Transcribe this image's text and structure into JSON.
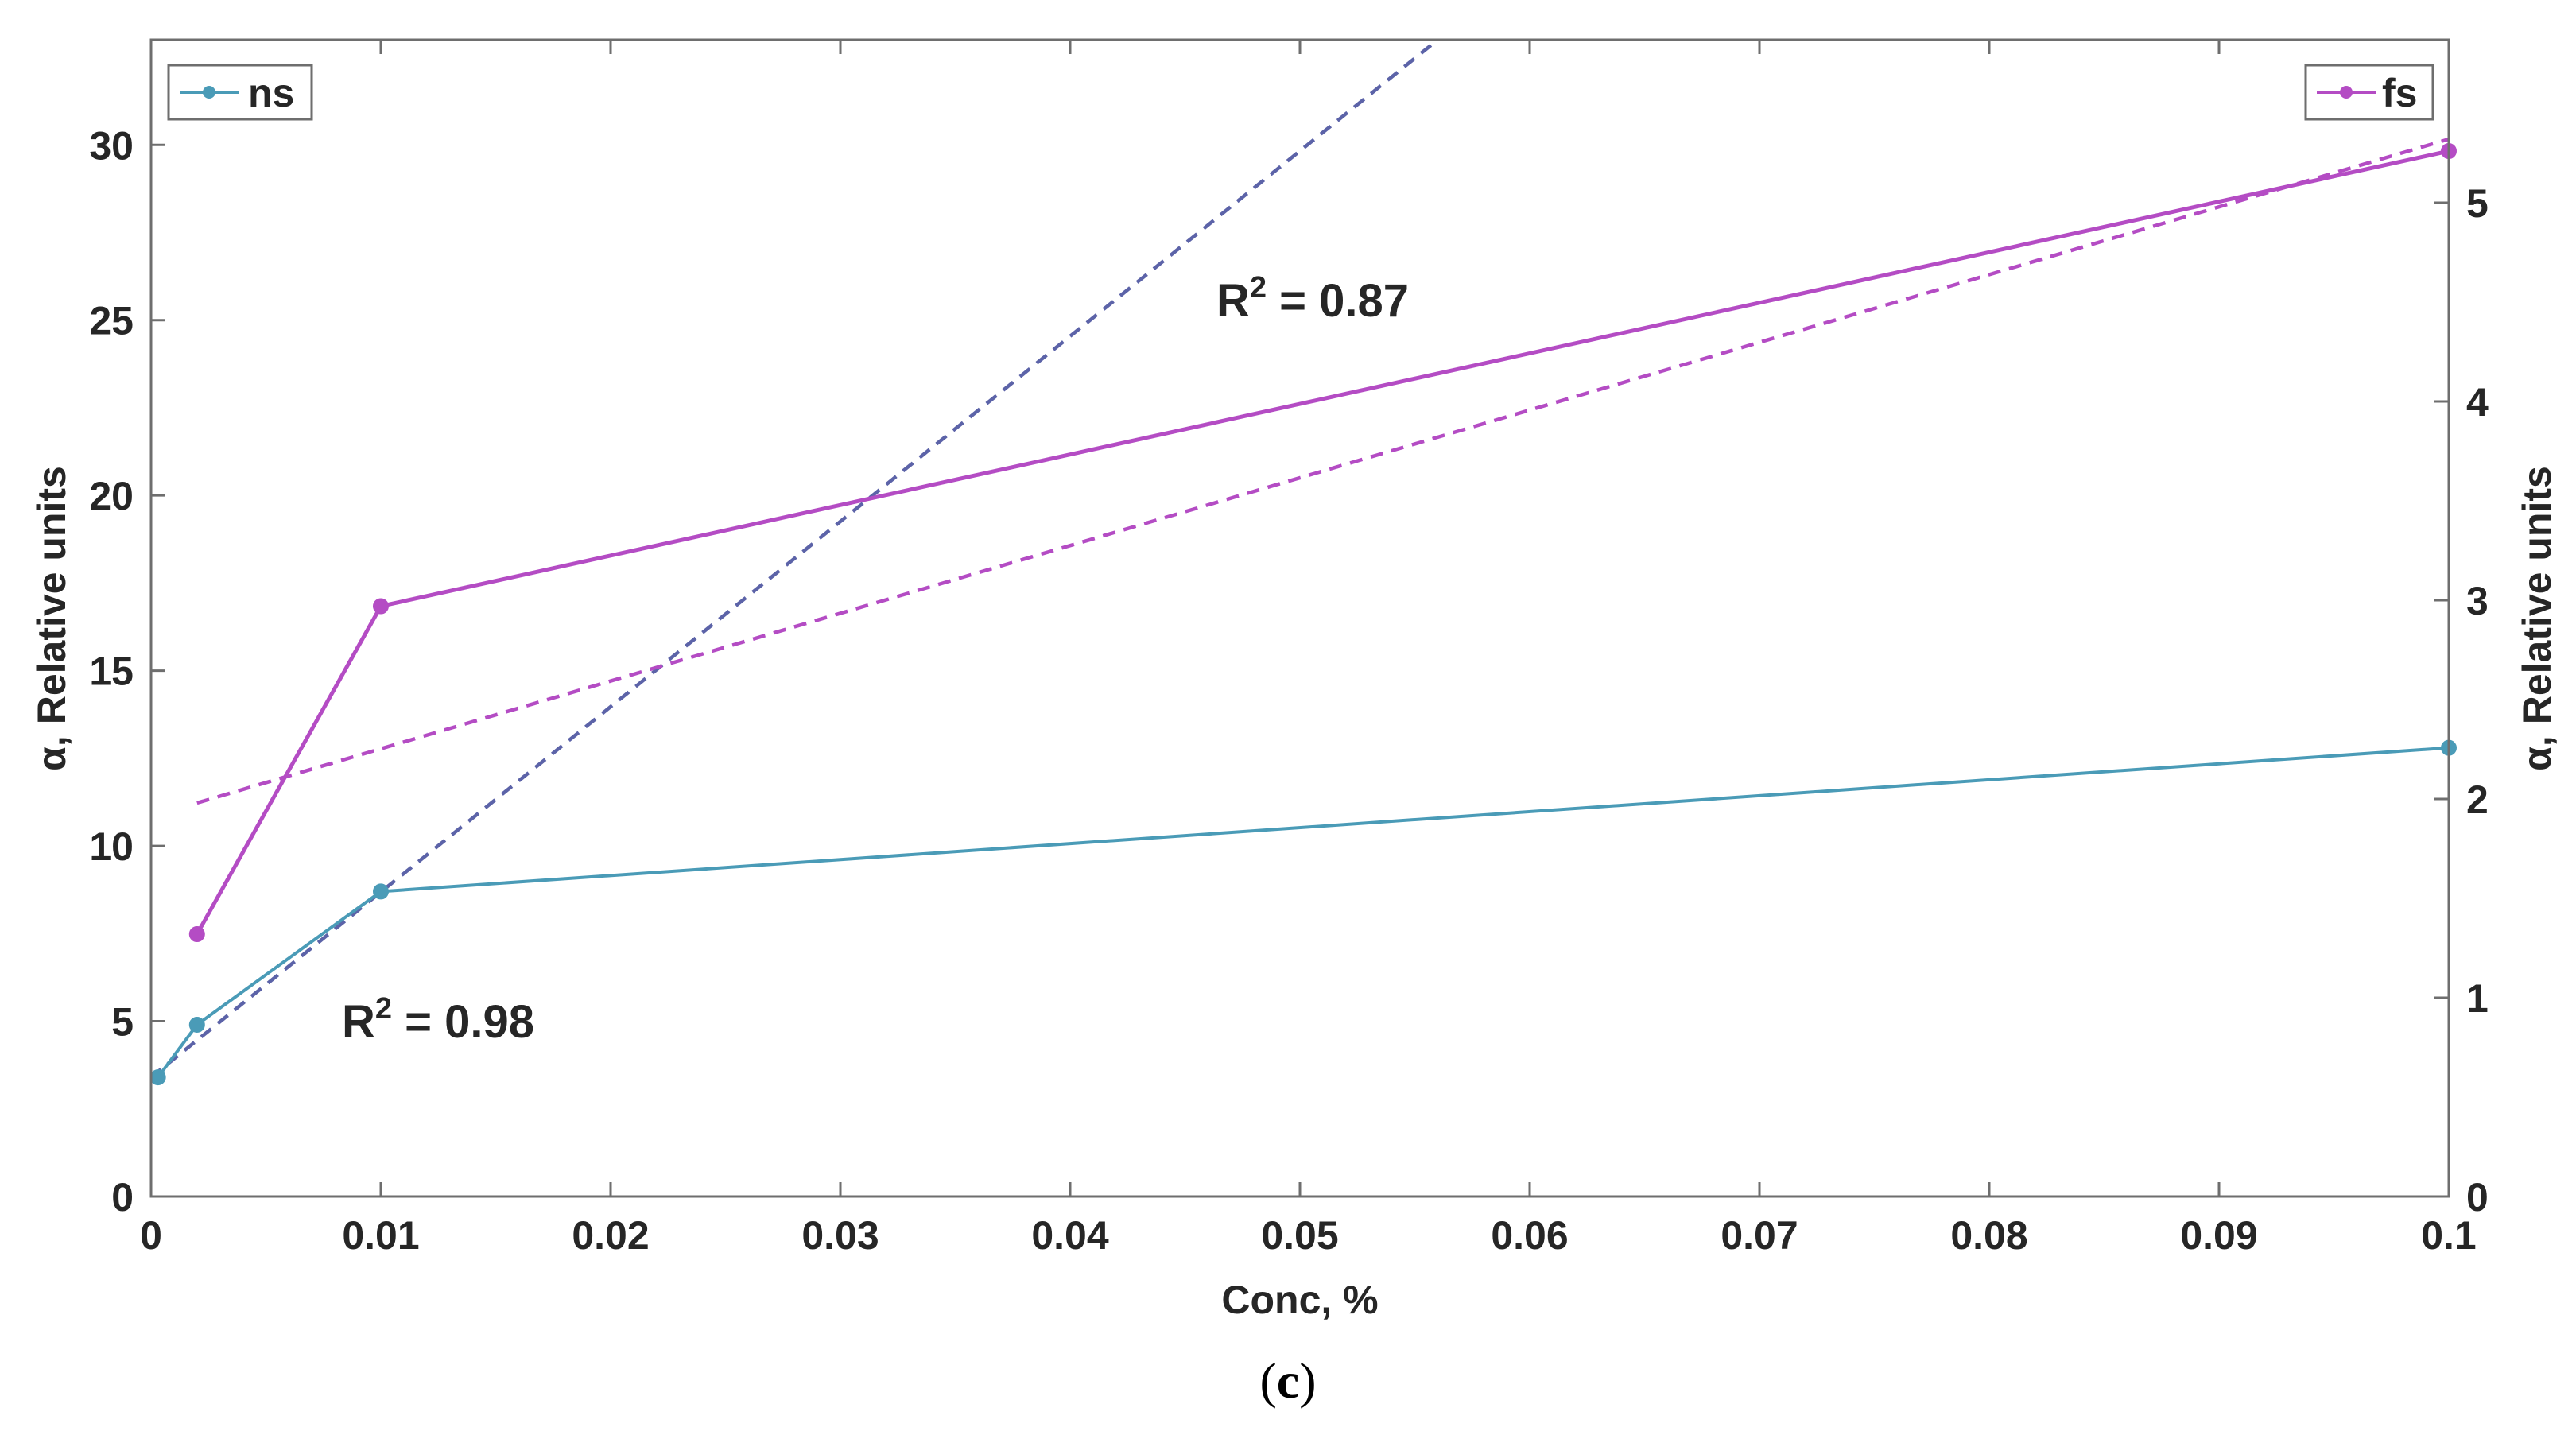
{
  "caption": {
    "open": "(",
    "letter": "c",
    "close": ")"
  },
  "colors": {
    "ns": "#4a9bb7",
    "fs": "#b44cc4",
    "ns_fit": "#5c63a8",
    "fs_fit": "#b44cc4",
    "axis": "#6e6e6e",
    "text": "#262626"
  },
  "chart_data": {
    "type": "line",
    "xlabel": "Conc, %",
    "ylabel_left": "α, Relative units",
    "ylabel_right": "α, Relative units",
    "xlim": [
      0,
      0.1
    ],
    "ylim_left": [
      0,
      33
    ],
    "ylim_right": [
      0,
      5.82
    ],
    "x_ticks": [
      0,
      0.01,
      0.02,
      0.03,
      0.04,
      0.05,
      0.06,
      0.07,
      0.08,
      0.09,
      0.1
    ],
    "x_tick_labels": [
      "0",
      "0.01",
      "0.02",
      "0.03",
      "0.04",
      "0.05",
      "0.06",
      "0.07",
      "0.08",
      "0.09",
      "0.1"
    ],
    "y_left_ticks": [
      0,
      5,
      10,
      15,
      20,
      25,
      30
    ],
    "y_left_tick_labels": [
      "0",
      "5",
      "10",
      "15",
      "20",
      "25",
      "30"
    ],
    "y_right_ticks": [
      0,
      1,
      2,
      3,
      4,
      5
    ],
    "y_right_tick_labels": [
      "0",
      "1",
      "2",
      "3",
      "4",
      "5"
    ],
    "grid": false,
    "series": [
      {
        "name": "ns",
        "axis": "left",
        "x": [
          0.0003,
          0.002,
          0.01,
          0.1
        ],
        "y": [
          3.4,
          4.9,
          8.7,
          12.8
        ]
      },
      {
        "name": "fs",
        "axis": "right",
        "x": [
          0.002,
          0.01,
          0.1
        ],
        "y": [
          1.32,
          2.97,
          5.26
        ]
      }
    ],
    "fits": [
      {
        "series": "ns",
        "axis": "left",
        "r2_text": "0.98",
        "x": [
          0,
          0.056
        ],
        "y": [
          3.4,
          33
        ]
      },
      {
        "series": "fs",
        "axis": "right",
        "r2_text": "0.87",
        "x": [
          0.002,
          0.1
        ],
        "y": [
          1.98,
          5.32
        ]
      }
    ],
    "legend": [
      {
        "name": "ns",
        "placement": "top-left"
      },
      {
        "name": "fs",
        "placement": "top-right"
      }
    ],
    "annotations": [
      {
        "label": "R",
        "sup": "2",
        "suffix": " = 0.87"
      },
      {
        "label": "R",
        "sup": "2",
        "suffix": " = 0.98"
      }
    ]
  }
}
